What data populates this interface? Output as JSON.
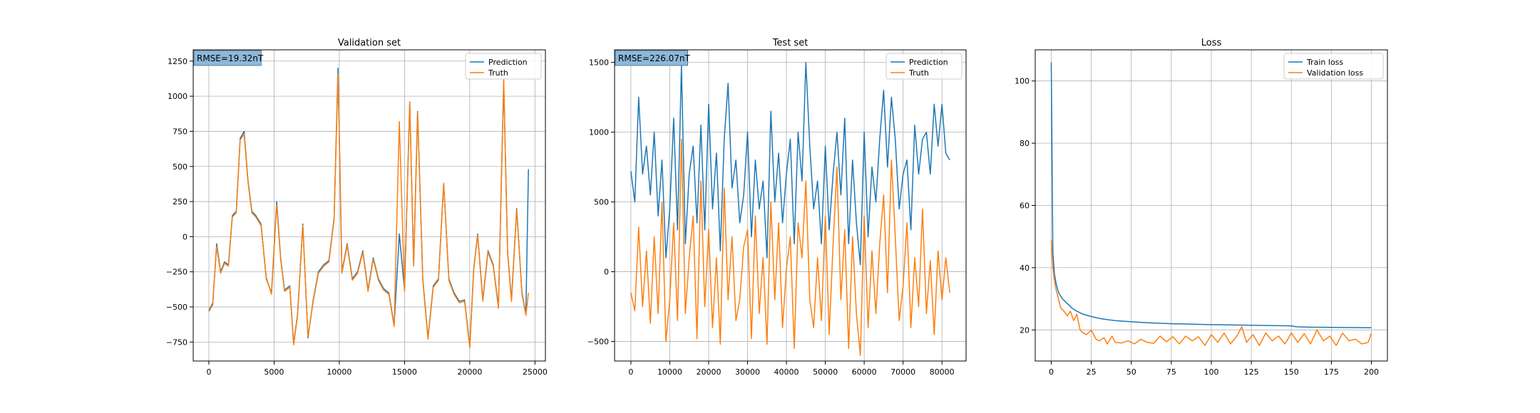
{
  "colors": {
    "prediction": "#1f77b4",
    "truth": "#ff7f0e",
    "train_loss": "#1f77b4",
    "validation_loss": "#ff7f0e",
    "rmse_box": "#8db8d9"
  },
  "chart_data": [
    {
      "type": "line",
      "title": "Validation set",
      "rmse_label": "RMSE=19.32nT",
      "xlim": [
        -1200,
        25800
      ],
      "ylim": [
        -885,
        1330
      ],
      "xticks": [
        0,
        5000,
        10000,
        15000,
        20000,
        25000
      ],
      "yticks": [
        -750,
        -500,
        -250,
        0,
        250,
        500,
        750,
        1000,
        1250
      ],
      "grid": true,
      "legend_position": "top-right",
      "legend": [
        "Prediction",
        "Truth"
      ],
      "series": [
        {
          "name": "Prediction",
          "x": [
            0,
            300,
            600,
            900,
            1200,
            1500,
            1800,
            2100,
            2400,
            2700,
            3000,
            3300,
            3600,
            4000,
            4400,
            4800,
            5200,
            5500,
            5800,
            6200,
            6500,
            6800,
            7200,
            7600,
            8000,
            8400,
            8800,
            9200,
            9600,
            9900,
            10200,
            10600,
            11000,
            11400,
            11800,
            12200,
            12600,
            13000,
            13400,
            13800,
            14200,
            14600,
            15000,
            15400,
            15700,
            16000,
            16400,
            16800,
            17200,
            17600,
            18000,
            18400,
            18800,
            19200,
            19600,
            20000,
            20300,
            20600,
            21000,
            21400,
            21800,
            22200,
            22600,
            22900,
            23200,
            23600,
            24000,
            24300,
            24500
          ],
          "y": [
            -530,
            -480,
            -50,
            -250,
            -180,
            -200,
            150,
            180,
            700,
            750,
            400,
            180,
            150,
            90,
            -300,
            -400,
            250,
            -150,
            -380,
            -350,
            -760,
            -550,
            90,
            -720,
            -450,
            -250,
            -200,
            -170,
            130,
            1200,
            -250,
            -50,
            -300,
            -250,
            -100,
            -380,
            -150,
            -300,
            -370,
            -400,
            -630,
            20,
            -380,
            960,
            -200,
            890,
            -300,
            -720,
            -350,
            -300,
            380,
            -300,
            -400,
            -460,
            -450,
            -780,
            -230,
            20,
            -450,
            -100,
            -200,
            -500,
            1100,
            -100,
            -450,
            200,
            -400,
            -550,
            480
          ]
        },
        {
          "name": "Truth",
          "x": [
            0,
            300,
            600,
            900,
            1200,
            1500,
            1800,
            2100,
            2400,
            2700,
            3000,
            3300,
            3600,
            4000,
            4400,
            4800,
            5200,
            5500,
            5800,
            6200,
            6500,
            6800,
            7200,
            7600,
            8000,
            8400,
            8800,
            9200,
            9600,
            9900,
            10200,
            10600,
            11000,
            11400,
            11800,
            12200,
            12600,
            13000,
            13400,
            13800,
            14200,
            14600,
            15000,
            15400,
            15700,
            16000,
            16400,
            16800,
            17200,
            17600,
            18000,
            18400,
            18800,
            19200,
            19600,
            20000,
            20300,
            20600,
            21000,
            21400,
            21800,
            22200,
            22600,
            22900,
            23200,
            23600,
            24000,
            24300,
            24500
          ],
          "y": [
            -520,
            -470,
            -70,
            -260,
            -190,
            -210,
            140,
            170,
            690,
            730,
            390,
            170,
            140,
            80,
            -290,
            -410,
            230,
            -160,
            -390,
            -360,
            -770,
            -560,
            80,
            -710,
            -460,
            -260,
            -210,
            -180,
            120,
            1160,
            -260,
            -60,
            -310,
            -260,
            -110,
            -390,
            -160,
            -310,
            -380,
            -410,
            -640,
            820,
            -390,
            960,
            -210,
            880,
            -310,
            -730,
            -360,
            -310,
            380,
            -310,
            -410,
            -470,
            -460,
            -790,
            -240,
            10,
            -460,
            -110,
            -210,
            -510,
            1130,
            -110,
            -460,
            190,
            -410,
            -560,
            -400
          ]
        }
      ]
    },
    {
      "type": "line",
      "title": "Test set",
      "rmse_label": "RMSE=226.07nT",
      "xlim": [
        -4200,
        86200
      ],
      "ylim": [
        -640,
        1590
      ],
      "xticks": [
        0,
        10000,
        20000,
        30000,
        40000,
        50000,
        60000,
        70000,
        80000
      ],
      "yticks": [
        -500,
        0,
        500,
        1000,
        1500
      ],
      "grid": true,
      "legend_position": "top-right",
      "legend": [
        "Prediction",
        "Truth"
      ],
      "series": [
        {
          "name": "Prediction",
          "x": [
            0,
            1000,
            2000,
            3000,
            4000,
            5000,
            6000,
            7000,
            8000,
            9000,
            10000,
            11000,
            12000,
            13000,
            14000,
            15000,
            16000,
            17000,
            18000,
            19000,
            20000,
            21000,
            22000,
            23000,
            24000,
            25000,
            26000,
            27000,
            28000,
            29000,
            30000,
            31000,
            32000,
            33000,
            34000,
            35000,
            36000,
            37000,
            38000,
            39000,
            40000,
            41000,
            42000,
            43000,
            44000,
            45000,
            46000,
            47000,
            48000,
            49000,
            50000,
            51000,
            52000,
            53000,
            54000,
            55000,
            56000,
            57000,
            58000,
            59000,
            60000,
            61000,
            62000,
            63000,
            64000,
            65000,
            66000,
            67000,
            68000,
            69000,
            70000,
            71000,
            72000,
            73000,
            74000,
            75000,
            76000,
            77000,
            78000,
            79000,
            80000,
            81000,
            82000
          ],
          "y": [
            720,
            500,
            1250,
            700,
            900,
            550,
            1000,
            400,
            800,
            100,
            450,
            1100,
            300,
            1480,
            200,
            700,
            900,
            350,
            1050,
            300,
            1200,
            450,
            850,
            150,
            950,
            1350,
            600,
            800,
            350,
            550,
            1000,
            250,
            800,
            450,
            650,
            100,
            1150,
            500,
            850,
            350,
            700,
            950,
            200,
            1000,
            650,
            1500,
            900,
            450,
            650,
            200,
            900,
            300,
            700,
            1000,
            550,
            1100,
            200,
            800,
            350,
            50,
            1000,
            250,
            750,
            500,
            950,
            1300,
            750,
            1250,
            950,
            450,
            700,
            800,
            300,
            1050,
            700,
            950,
            1000,
            700,
            1200,
            900,
            1200,
            850,
            800
          ]
        },
        {
          "name": "Truth",
          "x": [
            0,
            1000,
            2000,
            3000,
            4000,
            5000,
            6000,
            7000,
            8000,
            9000,
            10000,
            11000,
            12000,
            13000,
            14000,
            15000,
            16000,
            17000,
            18000,
            19000,
            20000,
            21000,
            22000,
            23000,
            24000,
            25000,
            26000,
            27000,
            28000,
            29000,
            30000,
            31000,
            32000,
            33000,
            34000,
            35000,
            36000,
            37000,
            38000,
            39000,
            40000,
            41000,
            42000,
            43000,
            44000,
            45000,
            46000,
            47000,
            48000,
            49000,
            50000,
            51000,
            52000,
            53000,
            54000,
            55000,
            56000,
            57000,
            58000,
            59000,
            60000,
            61000,
            62000,
            63000,
            64000,
            65000,
            66000,
            67000,
            68000,
            69000,
            70000,
            71000,
            72000,
            73000,
            74000,
            75000,
            76000,
            77000,
            78000,
            79000,
            80000,
            81000,
            82000
          ],
          "y": [
            -150,
            -280,
            320,
            -250,
            150,
            -370,
            250,
            -300,
            500,
            -500,
            -200,
            350,
            -350,
            950,
            -300,
            100,
            400,
            -480,
            650,
            -250,
            300,
            -400,
            100,
            -520,
            600,
            -200,
            250,
            -350,
            -200,
            180,
            300,
            -480,
            400,
            -300,
            100,
            -520,
            500,
            -200,
            350,
            -400,
            20,
            250,
            -550,
            350,
            100,
            650,
            -200,
            -400,
            100,
            -350,
            400,
            -450,
            200,
            750,
            -200,
            300,
            -550,
            250,
            -300,
            -600,
            400,
            -400,
            150,
            -300,
            200,
            550,
            -150,
            800,
            250,
            -350,
            -100,
            350,
            -400,
            100,
            -250,
            450,
            -300,
            80,
            -450,
            150,
            -200,
            100,
            -150
          ]
        }
      ]
    },
    {
      "type": "line",
      "title": "Loss",
      "xlim": [
        -10,
        210
      ],
      "ylim": [
        10,
        110
      ],
      "xticks": [
        0,
        25,
        50,
        75,
        100,
        125,
        150,
        175,
        200
      ],
      "yticks": [
        20,
        40,
        60,
        80,
        100
      ],
      "grid": true,
      "legend_position": "top-right",
      "legend": [
        "Train loss",
        "Validation loss"
      ],
      "series": [
        {
          "name": "Train loss",
          "x": [
            0,
            1,
            2,
            3,
            4,
            5,
            7,
            10,
            13,
            16,
            20,
            25,
            30,
            35,
            40,
            50,
            60,
            75,
            90,
            100,
            125,
            150,
            153,
            160,
            175,
            200
          ],
          "y": [
            106,
            45,
            38,
            35,
            33,
            31.5,
            30,
            28.5,
            27,
            26,
            25,
            24.3,
            23.7,
            23.3,
            23,
            22.6,
            22.3,
            22,
            21.8,
            21.7,
            21.5,
            21.3,
            21,
            20.9,
            20.8,
            20.7
          ]
        },
        {
          "name": "Validation loss",
          "x": [
            0,
            1,
            2,
            3,
            4,
            5,
            6,
            8,
            10,
            12,
            14,
            16,
            18,
            20,
            22,
            25,
            28,
            30,
            33,
            35,
            38,
            40,
            44,
            48,
            52,
            56,
            60,
            64,
            68,
            72,
            76,
            80,
            84,
            88,
            92,
            96,
            100,
            104,
            108,
            112,
            116,
            119,
            122,
            126,
            130,
            134,
            138,
            142,
            146,
            150,
            154,
            158,
            162,
            166,
            170,
            174,
            178,
            182,
            186,
            190,
            194,
            198,
            200
          ],
          "y": [
            49,
            40,
            36,
            33,
            31,
            29,
            27,
            26,
            24.5,
            26,
            23,
            25,
            20,
            19,
            18.5,
            20,
            17,
            16.5,
            17.5,
            15.5,
            18,
            16,
            15.8,
            16.5,
            15.5,
            17,
            16,
            15.7,
            18,
            16.2,
            17.8,
            15.5,
            18,
            16.5,
            17.8,
            15,
            18.5,
            16,
            19,
            15.5,
            18,
            21,
            16,
            18.5,
            15,
            19,
            16.5,
            18,
            15.5,
            19,
            16,
            18.8,
            15.5,
            20,
            16.5,
            18,
            15,
            19,
            16.5,
            17,
            15.5,
            16,
            19
          ]
        }
      ]
    }
  ]
}
